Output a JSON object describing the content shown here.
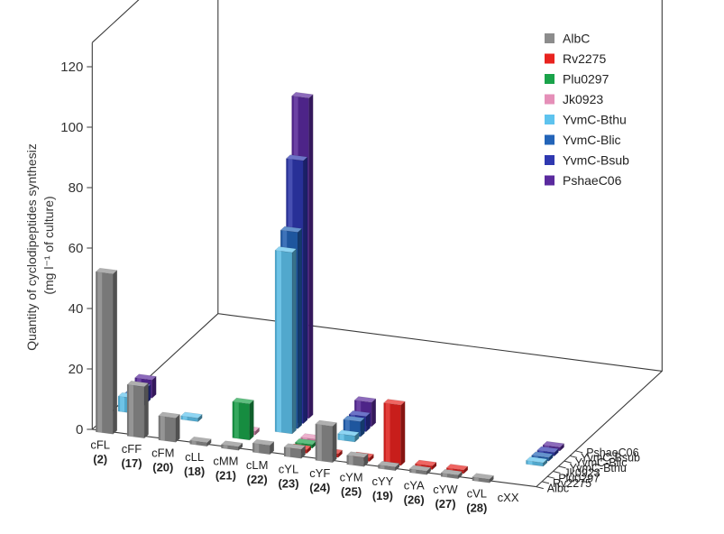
{
  "chart_data": {
    "type": "bar3d",
    "ylabel_line1": "Quantity of cyclodipeptides synthesiz",
    "ylabel_line2": "(mg l⁻¹ of culture)",
    "ylim": [
      0,
      120
    ],
    "yticks": [
      "0",
      "20",
      "40",
      "60",
      "80",
      "100",
      "120"
    ],
    "categories": [
      {
        "name": "cFL",
        "num": "(2)"
      },
      {
        "name": "cFF",
        "num": "(17)"
      },
      {
        "name": "cFM",
        "num": "(20)"
      },
      {
        "name": "cLL",
        "num": "(18)"
      },
      {
        "name": "cMM",
        "num": "(21)"
      },
      {
        "name": "cLM",
        "num": "(22)"
      },
      {
        "name": "cYL",
        "num": "(23)"
      },
      {
        "name": "cYF",
        "num": "(24)"
      },
      {
        "name": "cYM",
        "num": "(25)"
      },
      {
        "name": "cYY",
        "num": "(19)"
      },
      {
        "name": "cYA",
        "num": "(26)"
      },
      {
        "name": "cYW",
        "num": "(27)"
      },
      {
        "name": "cVL",
        "num": "(28)"
      },
      {
        "name": "cXX",
        "num": ""
      }
    ],
    "depth_labels": [
      "Albc",
      "Rv2275",
      "Plu0297",
      "Jk0923",
      "YvmC-Bthu",
      "YvmC-Blic",
      "YvmC-Bsub",
      "PshaeC06"
    ],
    "series": [
      {
        "name": "AlbC",
        "color": "#8c8c8c",
        "values": [
          53,
          17,
          8,
          1,
          1,
          3,
          3,
          12,
          3,
          0,
          0,
          0,
          0,
          null
        ]
      },
      {
        "name": "Rv2275",
        "color": "#e8231f",
        "values": [
          null,
          null,
          null,
          null,
          null,
          null,
          0,
          0,
          0,
          20,
          0,
          0,
          null,
          null
        ]
      },
      {
        "name": "Plu0297",
        "color": "#1aa34a",
        "values": [
          null,
          null,
          null,
          null,
          12,
          null,
          0,
          null,
          null,
          null,
          null,
          null,
          null,
          null
        ]
      },
      {
        "name": "Jk0923",
        "color": "#e58fb8",
        "values": [
          null,
          null,
          null,
          null,
          0,
          null,
          0,
          null,
          null,
          null,
          null,
          null,
          null,
          null
        ]
      },
      {
        "name": "YvmC-Bthu",
        "color": "#5ec3ee",
        "values": [
          5,
          null,
          0,
          null,
          null,
          60,
          null,
          2,
          null,
          null,
          null,
          null,
          null,
          0
        ]
      },
      {
        "name": "YvmC-Blic",
        "color": "#2364b8",
        "values": [
          4,
          null,
          null,
          null,
          null,
          65,
          null,
          5,
          null,
          null,
          null,
          null,
          null,
          0
        ]
      },
      {
        "name": "YvmC-Bsub",
        "color": "#2f38b0",
        "values": [
          5,
          null,
          null,
          null,
          null,
          87,
          null,
          5,
          null,
          null,
          null,
          null,
          null,
          0
        ]
      },
      {
        "name": "PshaeC06",
        "color": "#5a2a9e",
        "values": [
          6,
          null,
          null,
          null,
          null,
          106,
          null,
          8,
          null,
          null,
          null,
          null,
          null,
          0
        ]
      }
    ]
  }
}
